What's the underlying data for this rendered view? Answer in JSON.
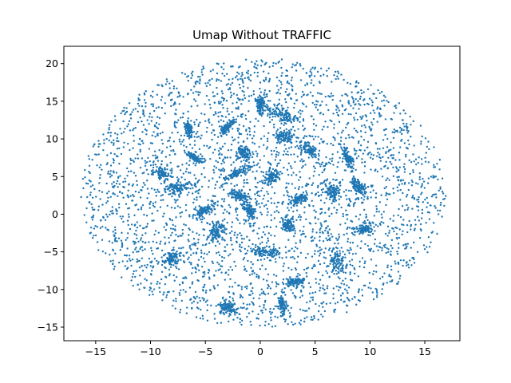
{
  "chart_data": {
    "type": "scatter",
    "title": "Umap Without TRAFFIC",
    "xlabel": "",
    "ylabel": "",
    "xlim": [
      -17.9,
      18.2
    ],
    "ylim": [
      -16.8,
      22.3
    ],
    "x_ticks": [
      -15,
      -10,
      -5,
      0,
      5,
      10,
      15
    ],
    "y_ticks": [
      -15,
      -10,
      -5,
      0,
      5,
      10,
      15,
      20
    ],
    "grid": false,
    "legend": "none",
    "marker_color": "#1f77b4",
    "marker_size": 1.2,
    "point_count": 6000,
    "distribution": {
      "shape": "ellipse",
      "center": [
        0.3,
        2.8
      ],
      "x_extent": [
        -16.4,
        16.9
      ],
      "y_extent": [
        -15.1,
        20.6
      ]
    },
    "clusters": [
      {
        "x": 2.2,
        "y": 10.3
      },
      {
        "x": 2.0,
        "y": 13.2
      },
      {
        "x": -6.5,
        "y": 11.3
      },
      {
        "x": -3.0,
        "y": 11.6
      },
      {
        "x": -2.0,
        "y": 5.5
      },
      {
        "x": 1.0,
        "y": 5.0
      },
      {
        "x": -7.5,
        "y": 3.5
      },
      {
        "x": -9.0,
        "y": 5.5
      },
      {
        "x": 3.5,
        "y": 2.0
      },
      {
        "x": -2.0,
        "y": 2.5
      },
      {
        "x": -1.0,
        "y": 0.5
      },
      {
        "x": 6.5,
        "y": 3.0
      },
      {
        "x": 8.0,
        "y": 7.5
      },
      {
        "x": -4.0,
        "y": -2.5
      },
      {
        "x": 0.5,
        "y": -5.0
      },
      {
        "x": 3.0,
        "y": -9.0
      },
      {
        "x": -3.0,
        "y": -12.5
      },
      {
        "x": 2.0,
        "y": -12.0
      },
      {
        "x": 9.5,
        "y": -2.0
      },
      {
        "x": -5.0,
        "y": 0.5
      },
      {
        "x": 4.5,
        "y": 8.5
      },
      {
        "x": -1.5,
        "y": 8.0
      },
      {
        "x": 7.0,
        "y": -6.5
      },
      {
        "x": -8.0,
        "y": -6.0
      },
      {
        "x": 2.5,
        "y": -1.5
      },
      {
        "x": 9.0,
        "y": 3.5
      },
      {
        "x": -6.0,
        "y": 7.5
      },
      {
        "x": 0.0,
        "y": 14.5
      }
    ]
  }
}
